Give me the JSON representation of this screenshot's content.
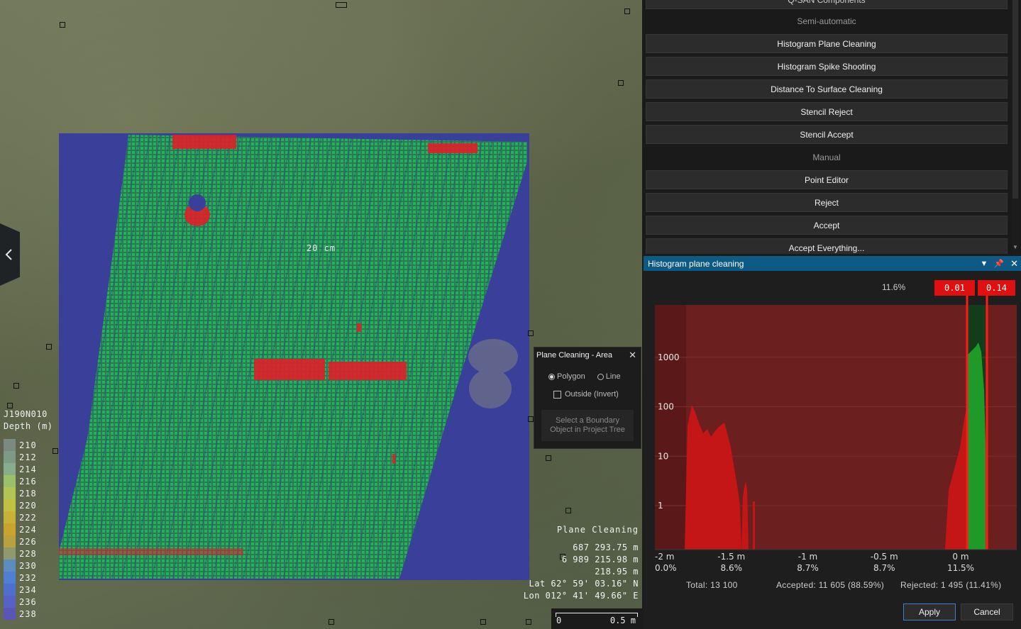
{
  "viewport": {
    "scale_label": "20 cm",
    "legend": {
      "title1": "J190N010",
      "title2": "Depth (m)",
      "entries": [
        {
          "value": "210",
          "color": "#7b8a80"
        },
        {
          "value": "212",
          "color": "#7c9a86"
        },
        {
          "value": "214",
          "color": "#86ae8c"
        },
        {
          "value": "216",
          "color": "#9cbf6a"
        },
        {
          "value": "218",
          "color": "#b4c454"
        },
        {
          "value": "220",
          "color": "#c2c040"
        },
        {
          "value": "222",
          "color": "#c6b236"
        },
        {
          "value": "224",
          "color": "#c8a42e"
        },
        {
          "value": "226",
          "color": "#b8a23e"
        },
        {
          "value": "228",
          "color": "#8e9a6e"
        },
        {
          "value": "230",
          "color": "#5c8cc0"
        },
        {
          "value": "232",
          "color": "#4e7fd2"
        },
        {
          "value": "234",
          "color": "#4f6fcf"
        },
        {
          "value": "236",
          "color": "#5663c6"
        },
        {
          "value": "238",
          "color": "#5a56b8"
        }
      ]
    },
    "info": {
      "title": "Plane Cleaning",
      "easting": "687 293.75 m",
      "northing": "6 989 215.98 m",
      "depth": "218.95 m",
      "lat": "Lat 62° 59' 03.16\" N",
      "lon": "Lon 012° 41' 49.66\" E"
    },
    "scalebar": {
      "start": "0",
      "end": "0.5 m"
    },
    "popup": {
      "title": "Plane Cleaning - Area",
      "polygon_label": "Polygon",
      "line_label": "Line",
      "outside_label": "Outside (Invert)",
      "hint": "Select a Boundary Object in Project Tree",
      "polygon_selected": true,
      "outside_checked": false
    }
  },
  "tools": {
    "top_partial": "Q-SAN Components",
    "items": [
      {
        "type": "section",
        "label": "Semi-automatic"
      },
      {
        "type": "button",
        "label": "Histogram Plane Cleaning"
      },
      {
        "type": "button",
        "label": "Histogram Spike Shooting"
      },
      {
        "type": "button",
        "label": "Distance To Surface Cleaning"
      },
      {
        "type": "button",
        "label": "Stencil Reject"
      },
      {
        "type": "button",
        "label": "Stencil Accept"
      },
      {
        "type": "section",
        "label": "Manual"
      },
      {
        "type": "button",
        "label": "Point Editor"
      },
      {
        "type": "button",
        "label": "Reject"
      },
      {
        "type": "button",
        "label": "Accept"
      },
      {
        "type": "button",
        "label": "Accept Everything..."
      }
    ]
  },
  "histogram": {
    "title": "Histogram plane cleaning",
    "percent_label": "11.6%",
    "threshold_low": "0.01",
    "threshold_high": "0.14",
    "y_ticks": [
      "1000",
      "100",
      "10",
      "1"
    ],
    "x_ticks": [
      {
        "label": "-2 m",
        "pct": "0.0%"
      },
      {
        "label": "-1.5 m",
        "pct": "8.6%"
      },
      {
        "label": "-1 m",
        "pct": "8.7%"
      },
      {
        "label": "-0.5 m",
        "pct": "8.7%"
      },
      {
        "label": "0 m",
        "pct": "11.5%"
      }
    ],
    "total": "Total: 13 100",
    "accepted": "Accepted: 11 605 (88.59%)",
    "rejected": "Rejected: 1 495 (11.41%)",
    "apply_label": "Apply",
    "cancel_label": "Cancel",
    "colors": {
      "rejected": "#c41616",
      "accepted": "#1f9a28",
      "threshold": "#ff1a1a",
      "title_bar": "#0e5a86"
    }
  }
}
